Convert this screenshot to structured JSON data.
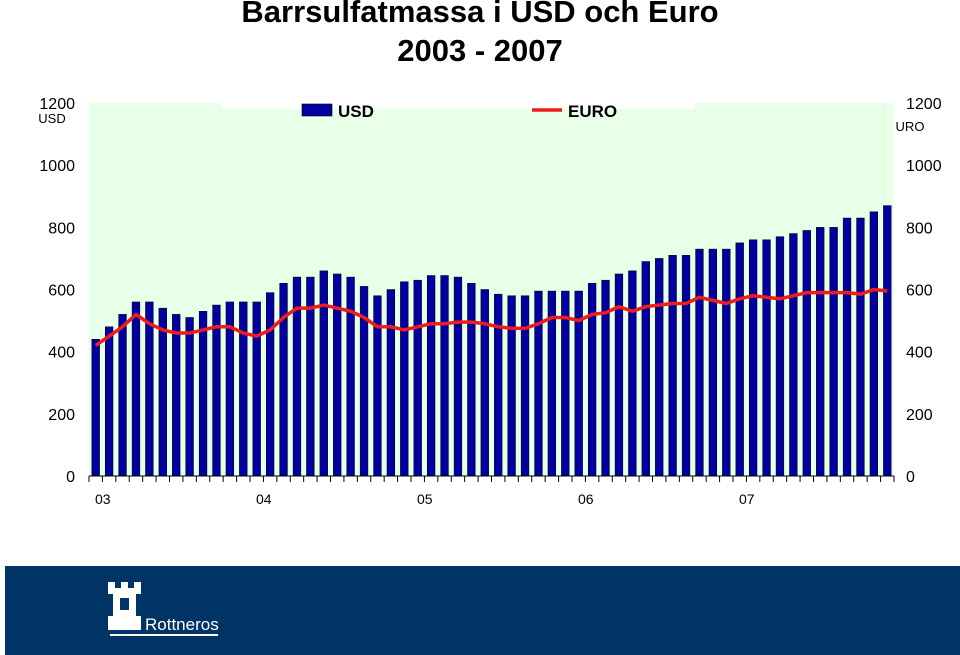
{
  "colors": {
    "plot_background": "#e8ffe8",
    "bar": "#0000a0",
    "line": "#ee1c1c",
    "footer_band": "#003466"
  },
  "footer": {
    "brand_name": "Rottneros",
    "logo_icon": "castle-tower-icon"
  },
  "chart_data": {
    "type": "bar",
    "title": "Barrsulfatmassa i USD och Euro",
    "subtitle": "2003 - 2007",
    "left_axis": {
      "label": "USD",
      "ylim": [
        0,
        1200
      ],
      "ticks": [
        0,
        200,
        400,
        600,
        800,
        1000,
        1200
      ]
    },
    "right_axis": {
      "label": "URO",
      "ylim": [
        0,
        1200
      ],
      "ticks": [
        0,
        200,
        400,
        600,
        800,
        1000,
        1200
      ]
    },
    "x_tick_labels": [
      {
        "label": "03",
        "index": 0
      },
      {
        "label": "04",
        "index": 12
      },
      {
        "label": "05",
        "index": 24
      },
      {
        "label": "06",
        "index": 36
      },
      {
        "label": "07",
        "index": 48
      }
    ],
    "legend": {
      "placement": "top",
      "entries": [
        "USD",
        "EURO"
      ]
    },
    "grid": false,
    "series": [
      {
        "name": "USD",
        "type": "bar",
        "values": [
          440,
          480,
          520,
          560,
          560,
          540,
          520,
          510,
          530,
          550,
          560,
          560,
          560,
          590,
          620,
          640,
          640,
          660,
          650,
          640,
          610,
          580,
          600,
          625,
          630,
          645,
          645,
          640,
          620,
          600,
          585,
          580,
          580,
          595,
          595,
          595,
          595,
          620,
          630,
          650,
          660,
          690,
          700,
          710,
          710,
          730,
          730,
          730,
          750,
          760,
          760,
          770,
          780,
          790,
          800,
          800,
          830,
          830,
          850,
          870
        ]
      },
      {
        "name": "EURO",
        "type": "line",
        "values": [
          420,
          450,
          480,
          520,
          490,
          470,
          460,
          460,
          470,
          480,
          480,
          460,
          450,
          470,
          510,
          540,
          540,
          550,
          540,
          530,
          510,
          480,
          480,
          470,
          480,
          490,
          490,
          495,
          495,
          490,
          480,
          475,
          475,
          490,
          510,
          510,
          500,
          520,
          525,
          545,
          530,
          545,
          550,
          555,
          555,
          575,
          565,
          555,
          570,
          580,
          575,
          570,
          580,
          590,
          590,
          590,
          590,
          585,
          600,
          595
        ]
      }
    ]
  }
}
